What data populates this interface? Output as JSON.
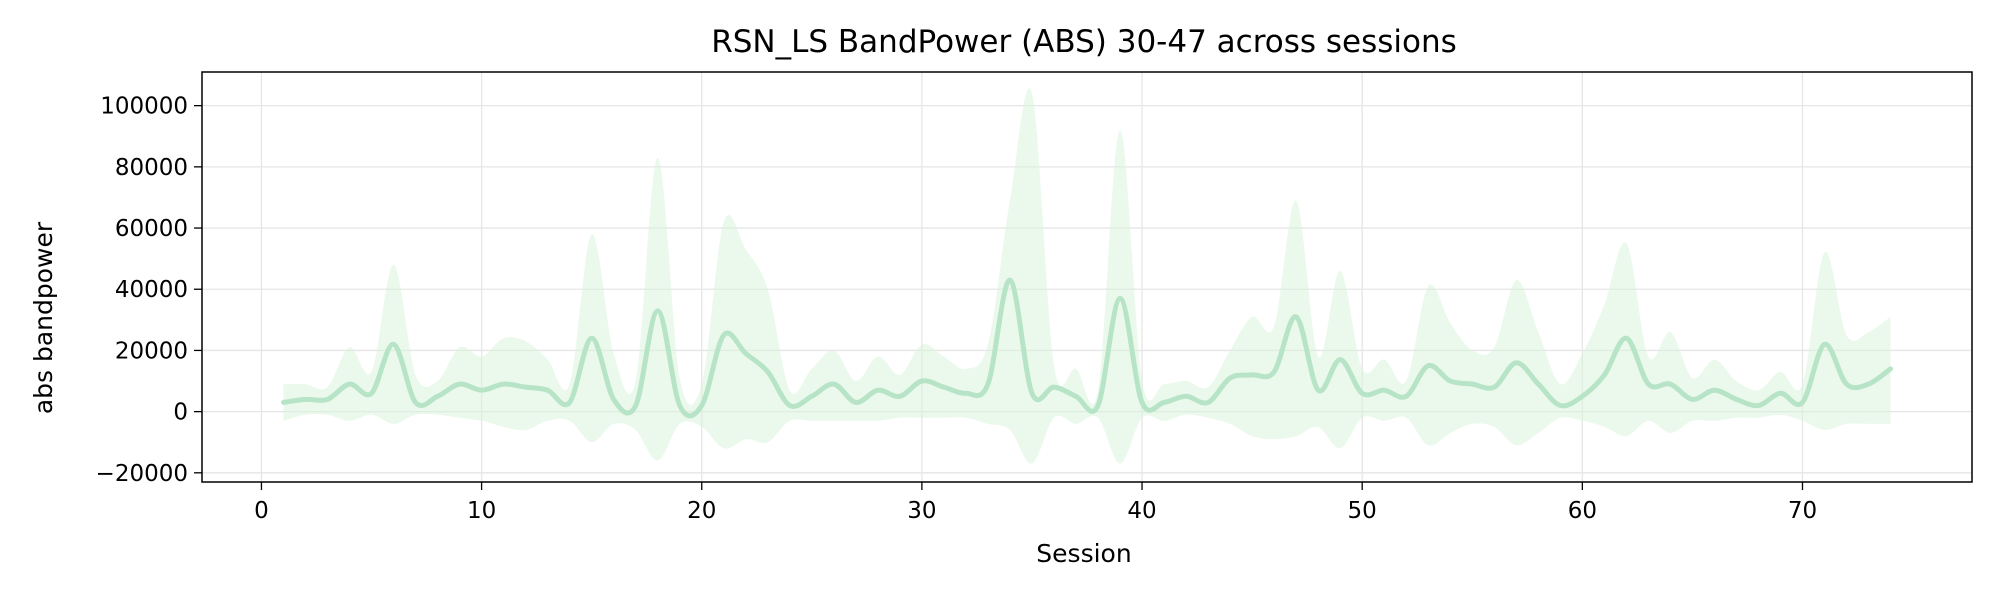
{
  "chart_data": {
    "type": "line",
    "title": "RSN_LS BandPower (ABS) 30-47 across sessions",
    "xlabel": "Session",
    "ylabel": "abs bandpower",
    "xlim": [
      -2.7,
      77.7
    ],
    "ylim": [
      -23000,
      111000
    ],
    "xticks": [
      0,
      10,
      20,
      30,
      40,
      50,
      60,
      70
    ],
    "yticks": [
      -20000,
      0,
      20000,
      40000,
      60000,
      80000,
      100000
    ],
    "grid": true,
    "colors": {
      "line": "#b7e4c7",
      "band": "#d8f3dc"
    },
    "series": [
      {
        "x": [
          1,
          2,
          3,
          4,
          5,
          6,
          7,
          8,
          9,
          10,
          11,
          12,
          13,
          14,
          15,
          16,
          17,
          18,
          19,
          20,
          21,
          22,
          23,
          24,
          25,
          26,
          27,
          28,
          29,
          30,
          31,
          32,
          33,
          34,
          35,
          36,
          37,
          38,
          39,
          40,
          41,
          42,
          43,
          44,
          45,
          46,
          47,
          48,
          49,
          50,
          51,
          52,
          53,
          54,
          55,
          56,
          57,
          58,
          59,
          60,
          61,
          62,
          63,
          64,
          65,
          66,
          67,
          68,
          69,
          70,
          71,
          72,
          73,
          74
        ],
        "values": [
          3000,
          4000,
          4000,
          9000,
          6000,
          22000,
          3000,
          5000,
          9000,
          7000,
          9000,
          8000,
          7000,
          3000,
          24000,
          4000,
          2000,
          33000,
          2000,
          2000,
          25000,
          19000,
          13000,
          2000,
          5000,
          9000,
          3000,
          7000,
          5000,
          10000,
          8000,
          6000,
          9000,
          43000,
          6000,
          8000,
          5000,
          2000,
          37000,
          3000,
          3000,
          5000,
          3000,
          11000,
          12000,
          13000,
          31000,
          7000,
          17000,
          6000,
          7000,
          5000,
          15000,
          10000,
          9000,
          8000,
          16000,
          9000,
          2000,
          5000,
          12000,
          24000,
          9000,
          9000,
          4000,
          7000,
          4000,
          2000,
          6000,
          3000,
          22000,
          9000,
          9000,
          14000
        ],
        "upper": [
          9000,
          9000,
          8000,
          21000,
          13000,
          48000,
          12000,
          10000,
          21000,
          18000,
          24000,
          23000,
          17000,
          9000,
          58000,
          19000,
          10000,
          83000,
          11000,
          9000,
          62000,
          53000,
          40000,
          7000,
          14000,
          20000,
          10000,
          18000,
          12000,
          22000,
          18000,
          14000,
          22000,
          69000,
          104000,
          15000,
          14000,
          7000,
          92000,
          10000,
          9000,
          10000,
          8000,
          20000,
          31000,
          28000,
          69000,
          18000,
          46000,
          14000,
          17000,
          10000,
          41000,
          29000,
          20000,
          21000,
          43000,
          26000,
          9000,
          19000,
          35000,
          55000,
          18000,
          26000,
          11000,
          17000,
          10000,
          7000,
          13000,
          9000,
          52000,
          25000,
          26000,
          31000
        ],
        "lower": [
          -3000,
          -1000,
          -1000,
          -3000,
          -1000,
          -4000,
          -1000,
          -1000,
          -2000,
          -3000,
          -5000,
          -6000,
          -3000,
          -3000,
          -10000,
          -4000,
          -6000,
          -16000,
          -4000,
          -5000,
          -12000,
          -9000,
          -10000,
          -3000,
          -3000,
          -3000,
          -3000,
          -3000,
          -2000,
          -2000,
          -2000,
          -2000,
          -4000,
          -6000,
          -17000,
          -2000,
          -4000,
          -2000,
          -17000,
          -2000,
          -3000,
          -1000,
          -2000,
          -4000,
          -8000,
          -9000,
          -8000,
          -5000,
          -12000,
          -2000,
          -3000,
          -2000,
          -11000,
          -7000,
          -4000,
          -5000,
          -11000,
          -7000,
          -2000,
          -3000,
          -5000,
          -8000,
          -3000,
          -7000,
          -3000,
          -3000,
          -2000,
          -2000,
          -1000,
          -3000,
          -6000,
          -4000,
          -4000,
          -4000
        ]
      }
    ]
  }
}
